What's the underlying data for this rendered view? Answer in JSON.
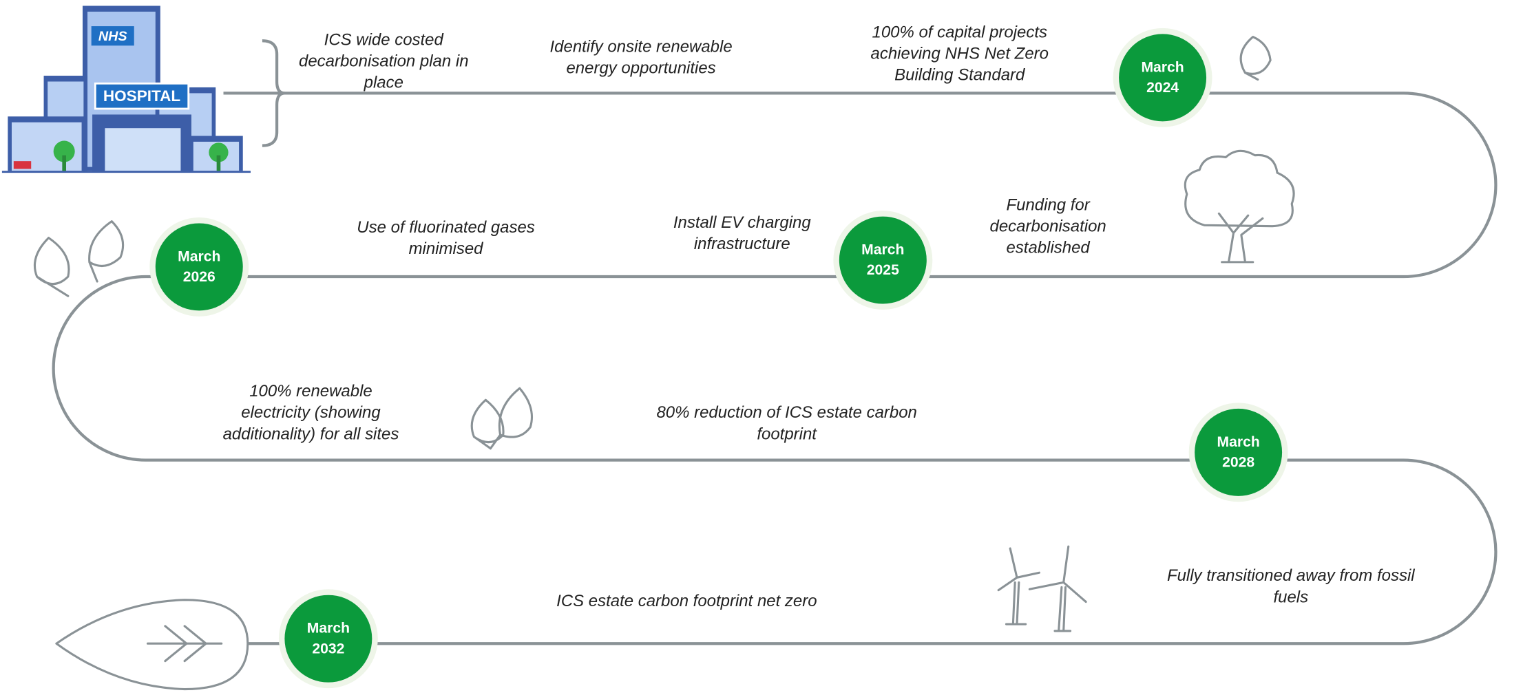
{
  "icon_labels": {
    "brand": "NHS",
    "building": "HOSPITAL"
  },
  "milestones": [
    {
      "month": "March",
      "year": "2024"
    },
    {
      "month": "March",
      "year": "2025"
    },
    {
      "month": "March",
      "year": "2026"
    },
    {
      "month": "March",
      "year": "2028"
    },
    {
      "month": "March",
      "year": "2032"
    }
  ],
  "goals": [
    {
      "lines": [
        "ICS wide costed",
        "decarbonisation plan in",
        "place"
      ]
    },
    {
      "lines": [
        "Identify onsite renewable",
        "energy opportunities"
      ]
    },
    {
      "lines": [
        "100% of capital projects",
        "achieving NHS Net Zero",
        "Building Standard"
      ]
    },
    {
      "lines": [
        "Use of fluorinated gases",
        "minimised"
      ]
    },
    {
      "lines": [
        "Install EV charging",
        "infrastructure"
      ]
    },
    {
      "lines": [
        "Funding for",
        "decarbonisation",
        "established"
      ]
    },
    {
      "lines": [
        "100% renewable",
        "electricity (showing",
        "additionality) for all sites"
      ]
    },
    {
      "lines": [
        "80% reduction of  ICS estate carbon",
        "footprint"
      ]
    },
    {
      "lines": [
        "Fully transitioned away from fossil",
        "fuels"
      ]
    },
    {
      "lines": [
        "ICS estate carbon footprint net zero"
      ]
    }
  ]
}
